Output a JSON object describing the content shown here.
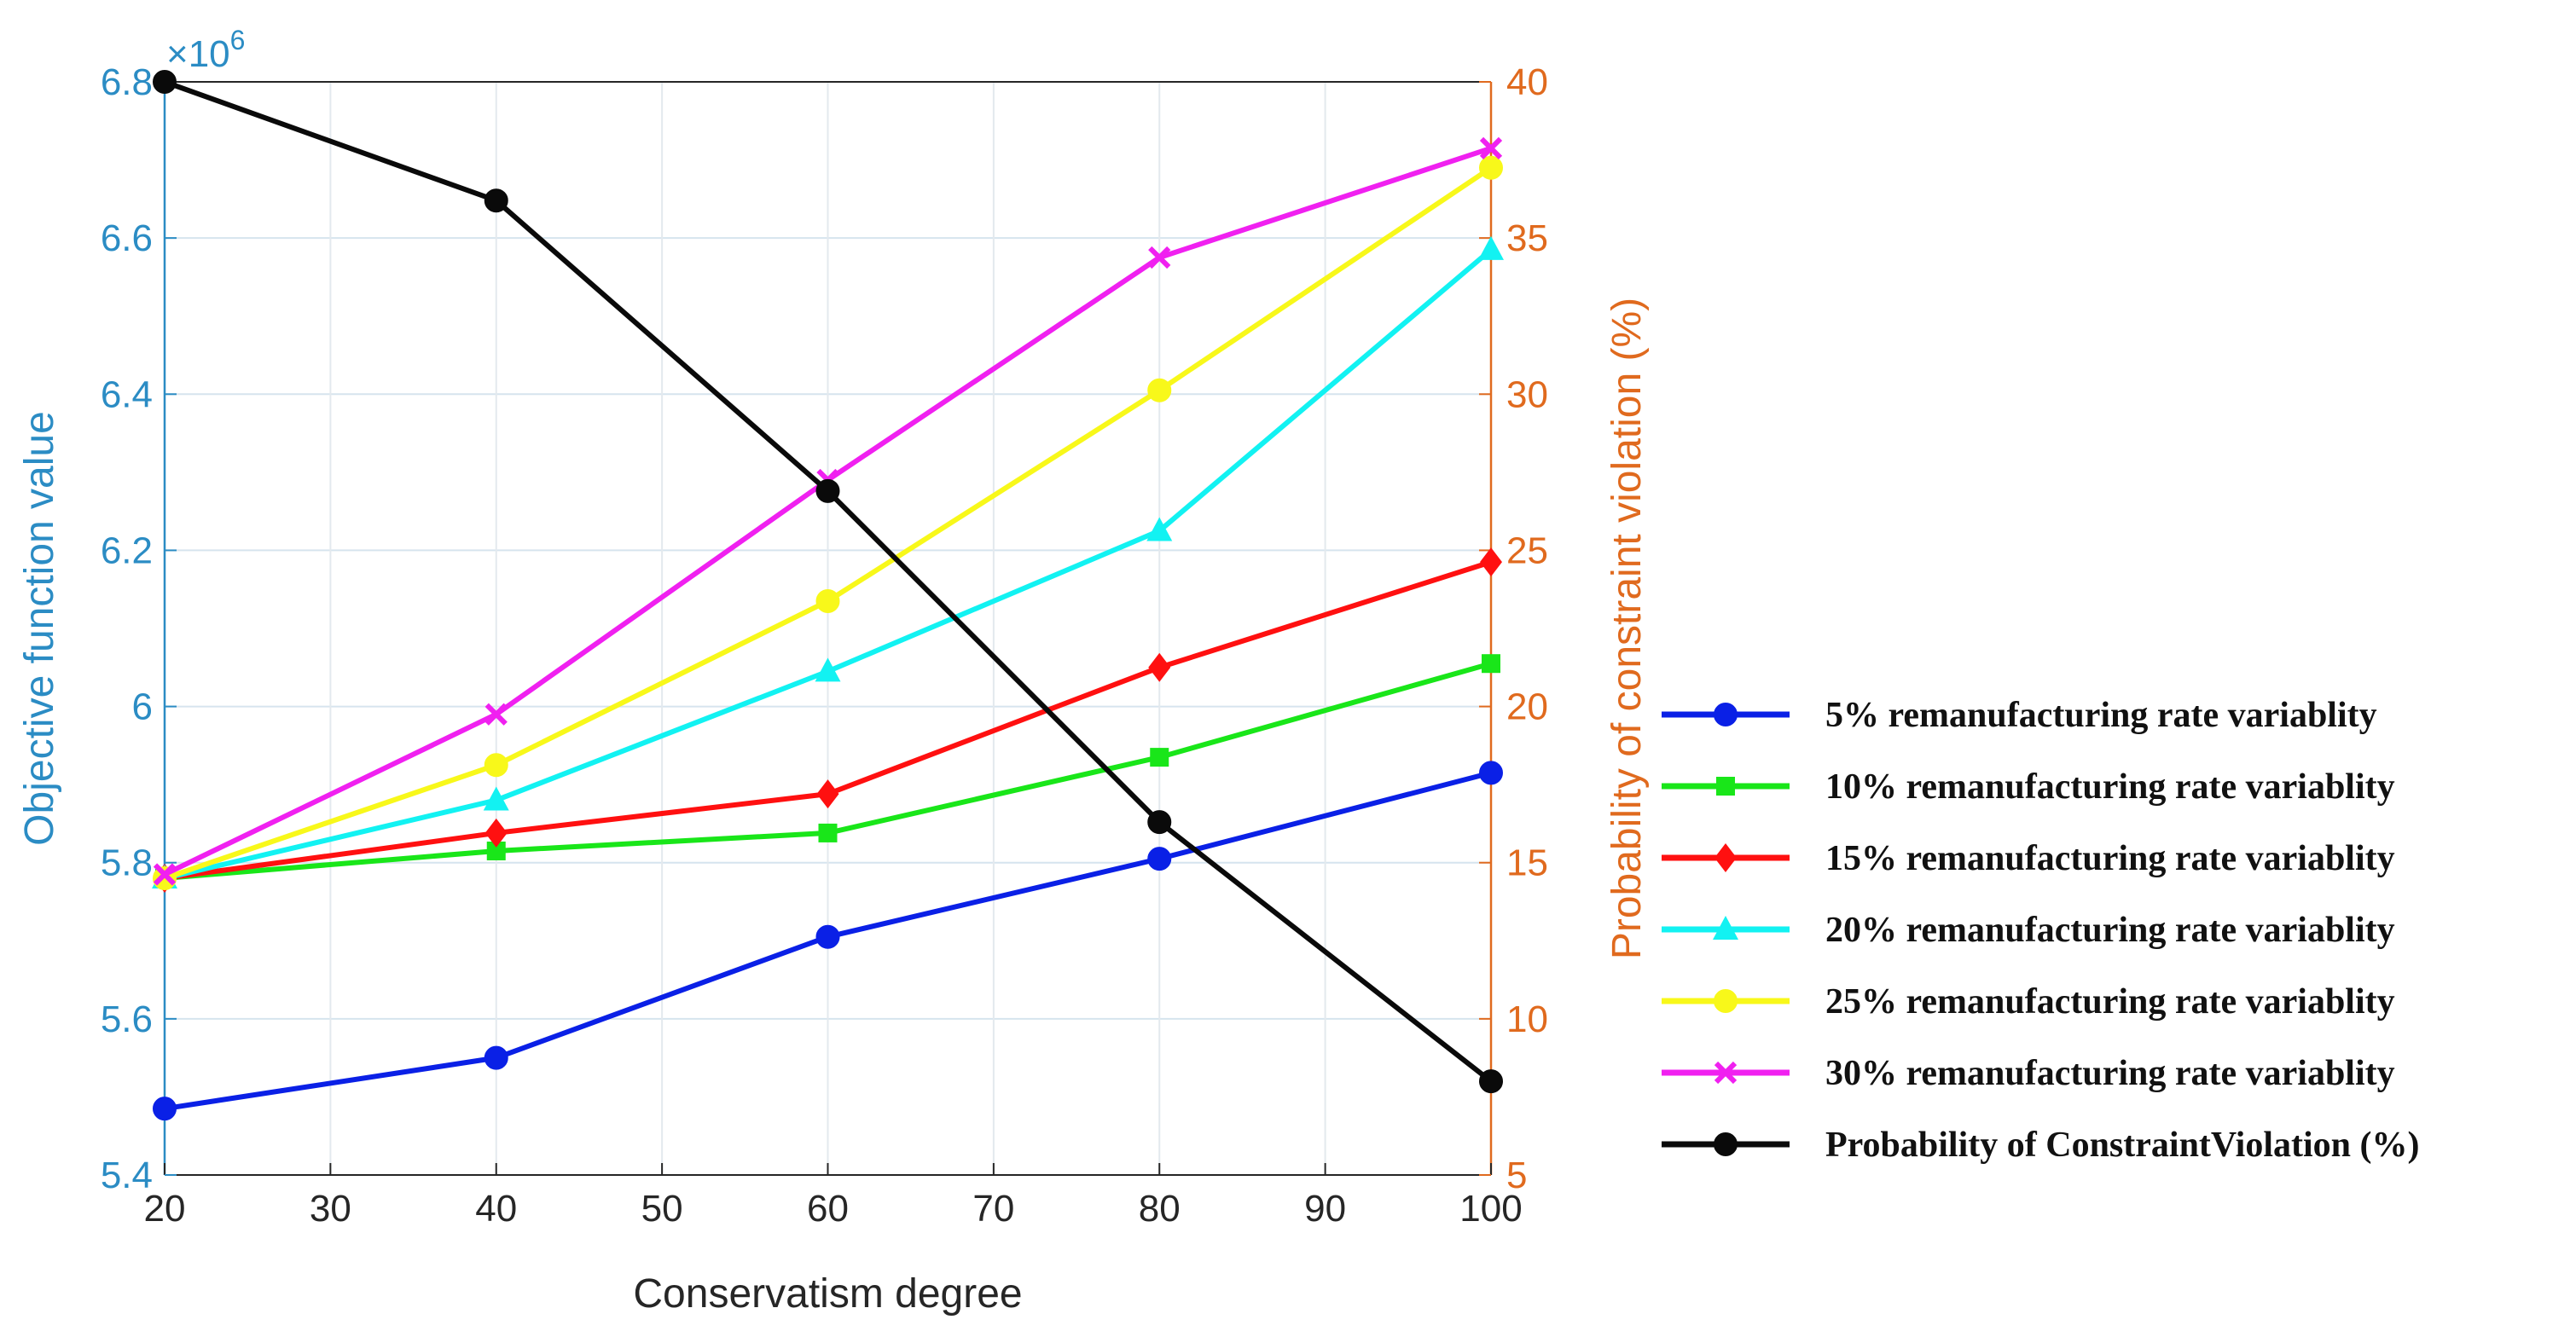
{
  "chart_data": {
    "type": "line",
    "xlabel": "Conservatism degree",
    "ylabel_left": "Objective function value",
    "ylabel_right": "Probability of constraint violation (%)",
    "left_exponent_label": "×10^6",
    "left_exponent_base": "×10",
    "left_exponent_power": "6",
    "x": [
      20,
      40,
      60,
      80,
      100
    ],
    "xlim": [
      20,
      100
    ],
    "xticks": [
      "20",
      "30",
      "40",
      "50",
      "60",
      "70",
      "80",
      "90",
      "100"
    ],
    "ylim_left": [
      5.4,
      6.8
    ],
    "yticks_left": [
      "5.4",
      "5.6",
      "5.8",
      "6",
      "6.2",
      "6.4",
      "6.6",
      "6.8"
    ],
    "ylim_right": [
      5,
      40
    ],
    "yticks_right": [
      "5",
      "10",
      "15",
      "20",
      "25",
      "30",
      "35",
      "40"
    ],
    "grid": true,
    "left_axis_color": "#2b8cc4",
    "right_axis_color": "#e06a1e",
    "legend_position": "right",
    "series": [
      {
        "name": "5% remanufacturing rate variablity",
        "axis": "left",
        "color": "#0a20e6",
        "marker": "circle",
        "values": [
          5.485,
          5.55,
          5.705,
          5.805,
          5.915
        ]
      },
      {
        "name": "10% remanufacturing rate variablity",
        "axis": "left",
        "color": "#19e619",
        "marker": "square",
        "values": [
          5.78,
          5.815,
          5.838,
          5.935,
          6.055
        ]
      },
      {
        "name": "15% remanufacturing rate variablity",
        "axis": "left",
        "color": "#ff1010",
        "marker": "diamond",
        "values": [
          5.78,
          5.838,
          5.888,
          6.05,
          6.185
        ]
      },
      {
        "name": "20% remanufacturing rate variablity",
        "axis": "left",
        "color": "#12f2f2",
        "marker": "triangle",
        "values": [
          5.78,
          5.88,
          6.045,
          6.225,
          6.585
        ]
      },
      {
        "name": "25% remanufacturing rate variablity",
        "axis": "left",
        "color": "#f8f81a",
        "marker": "circle",
        "values": [
          5.78,
          5.925,
          6.135,
          6.405,
          6.69
        ]
      },
      {
        "name": "30% remanufacturing rate variablity",
        "axis": "left",
        "color": "#f020f0",
        "marker": "x",
        "values": [
          5.785,
          5.99,
          6.29,
          6.575,
          6.715
        ]
      },
      {
        "name": "Probability of ConstraintViolation (%)",
        "axis": "right",
        "color": "#0a0a0a",
        "marker": "circle",
        "values": [
          40,
          36.2,
          26.9,
          16.3,
          8
        ]
      }
    ]
  }
}
